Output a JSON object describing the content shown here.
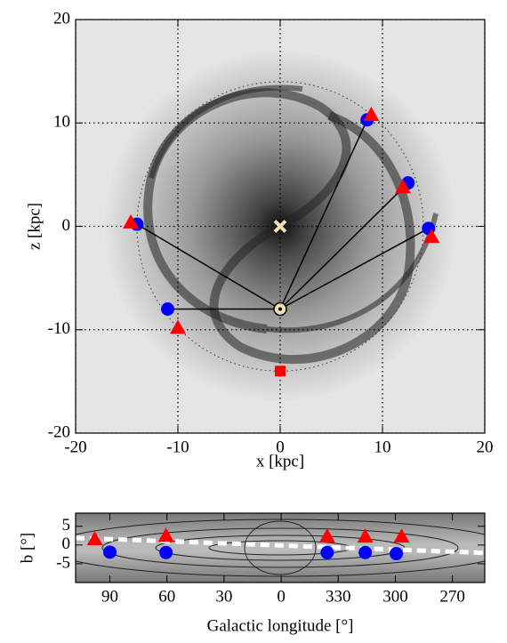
{
  "chart_data": [
    {
      "type": "scatter",
      "xlabel": "x [kpc]",
      "ylabel": "z [kpc]",
      "xlim": [
        -20,
        20
      ],
      "ylim": [
        -20,
        20
      ],
      "xticks": [
        -20,
        -10,
        0,
        10,
        20
      ],
      "yticks": [
        -20,
        -10,
        0,
        10,
        20
      ],
      "grid": true,
      "ring_radius": 14,
      "series": [
        {
          "marker": "circle",
          "color": "#0000ff",
          "x": [
            -14,
            -11,
            8.5,
            12.5,
            14.5
          ],
          "y": [
            0.2,
            -8,
            10.3,
            4.2,
            -0.2
          ]
        },
        {
          "marker": "triangle",
          "color": "#ff0000",
          "x": [
            -14.6,
            -10,
            8.9,
            12,
            14.8
          ],
          "y": [
            0.4,
            -9.8,
            10.8,
            3.8,
            -1
          ]
        },
        {
          "marker": "square",
          "color": "#ff0000",
          "x": [
            0
          ],
          "y": [
            -14
          ]
        },
        {
          "marker": "cross",
          "color": "#f5deb3",
          "x": [
            0
          ],
          "y": [
            0
          ]
        },
        {
          "marker": "sun",
          "color": "#f5deb3",
          "x": [
            0
          ],
          "y": [
            -8
          ]
        }
      ]
    },
    {
      "type": "scatter",
      "xlabel": "Galactic longitude [°]",
      "ylabel": "b [°]",
      "xlim": [
        108,
        -107
      ],
      "ylim": [
        -10,
        8.5
      ],
      "xticks": [
        90,
        60,
        30,
        0,
        {
          "value": -30,
          "label": "330"
        },
        {
          "value": -60,
          "label": "300"
        },
        {
          "value": -90,
          "label": "270"
        }
      ],
      "yticks": [
        5,
        0,
        -5
      ],
      "grid": false,
      "series": [
        {
          "marker": "dashed-line",
          "color": "#ffffff",
          "x": [
            108,
            -107
          ],
          "y": [
            1.9,
            -2.1
          ]
        },
        {
          "marker": "triangle",
          "color": "#ff0000",
          "x": [
            97.9,
            60.5,
            -24.2,
            -44.2,
            -63.3
          ],
          "y": [
            1.6,
            2.5,
            2.3,
            2.3,
            2.3
          ]
        },
        {
          "marker": "circle",
          "color": "#0000ff",
          "x": [
            90,
            60.5,
            -24.2,
            -44.2,
            -60.5
          ],
          "y": [
            -1.9,
            -2,
            -2,
            -2,
            -2.3
          ]
        }
      ]
    }
  ]
}
